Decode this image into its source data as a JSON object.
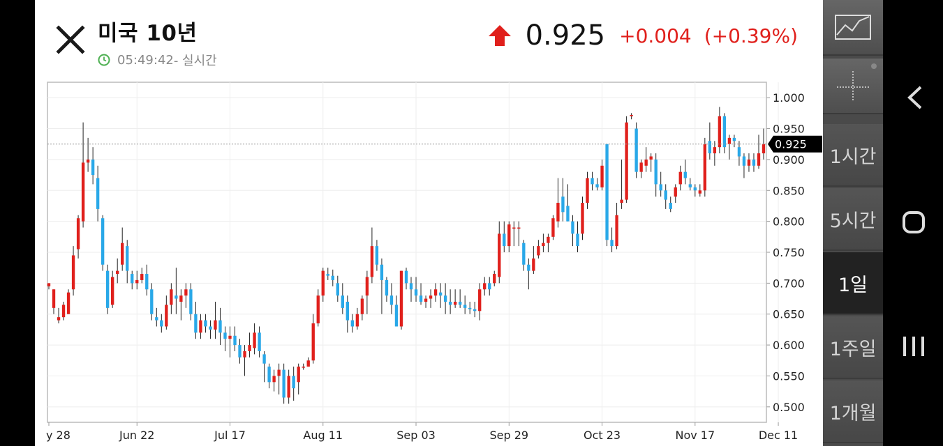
{
  "header": {
    "title": "미국 10년",
    "time": "05:49:42",
    "realtime_label": " - 실시간",
    "price": "0.925",
    "change": "+0.004",
    "change_pct": "(+0.39%)"
  },
  "colors": {
    "up": "#e0201c",
    "down": "#29a8e8",
    "accent_green": "#4caf50",
    "panel": "#4a4a4a"
  },
  "toolbar": {
    "tools": [
      "chart-type-icon",
      "crosshair-icon"
    ]
  },
  "periods": [
    {
      "label": "1시간",
      "active": false
    },
    {
      "label": "5시간",
      "active": false
    },
    {
      "label": "1일",
      "active": true
    },
    {
      "label": "1주일",
      "active": false
    },
    {
      "label": "1개월",
      "active": false
    }
  ],
  "nav": [
    "back-icon",
    "home-icon",
    "recents-icon"
  ],
  "chart_data": {
    "type": "candlestick",
    "ylim": [
      0.475,
      1.025
    ],
    "y_ticks": [
      "1.000",
      "0.950",
      "0.900",
      "0.850",
      "0.800",
      "0.750",
      "0.700",
      "0.650",
      "0.600",
      "0.550",
      "0.500"
    ],
    "x_labels": [
      "y 28",
      "Jun 22",
      "Jul 17",
      "Aug 11",
      "Sep 03",
      "Sep 29",
      "Oct 23",
      "Nov 17",
      "Dec 11"
    ],
    "current_value": 0.925,
    "current_label": "0.925",
    "candles": [
      [
        0.695,
        0.7,
        0.69,
        0.7
      ],
      [
        0.66,
        0.69,
        0.65,
        0.69
      ],
      [
        0.64,
        0.66,
        0.635,
        0.645
      ],
      [
        0.645,
        0.67,
        0.64,
        0.665
      ],
      [
        0.65,
        0.69,
        0.65,
        0.685
      ],
      [
        0.69,
        0.76,
        0.68,
        0.745
      ],
      [
        0.755,
        0.81,
        0.74,
        0.805
      ],
      [
        0.8,
        0.96,
        0.79,
        0.895
      ],
      [
        0.895,
        0.935,
        0.88,
        0.9
      ],
      [
        0.9,
        0.92,
        0.86,
        0.875
      ],
      [
        0.87,
        0.89,
        0.8,
        0.82
      ],
      [
        0.805,
        0.81,
        0.72,
        0.73
      ],
      [
        0.72,
        0.73,
        0.65,
        0.66
      ],
      [
        0.665,
        0.72,
        0.66,
        0.71
      ],
      [
        0.715,
        0.74,
        0.7,
        0.72
      ],
      [
        0.73,
        0.79,
        0.72,
        0.765
      ],
      [
        0.76,
        0.77,
        0.7,
        0.72
      ],
      [
        0.715,
        0.72,
        0.69,
        0.7
      ],
      [
        0.7,
        0.72,
        0.69,
        0.705
      ],
      [
        0.705,
        0.725,
        0.7,
        0.715
      ],
      [
        0.715,
        0.73,
        0.68,
        0.69
      ],
      [
        0.69,
        0.7,
        0.64,
        0.65
      ],
      [
        0.645,
        0.66,
        0.63,
        0.64
      ],
      [
        0.64,
        0.65,
        0.62,
        0.63
      ],
      [
        0.63,
        0.68,
        0.625,
        0.665
      ],
      [
        0.665,
        0.7,
        0.65,
        0.69
      ],
      [
        0.68,
        0.725,
        0.65,
        0.675
      ],
      [
        0.67,
        0.69,
        0.64,
        0.68
      ],
      [
        0.68,
        0.7,
        0.66,
        0.69
      ],
      [
        0.69,
        0.7,
        0.64,
        0.65
      ],
      [
        0.65,
        0.67,
        0.61,
        0.62
      ],
      [
        0.62,
        0.65,
        0.61,
        0.64
      ],
      [
        0.64,
        0.65,
        0.62,
        0.63
      ],
      [
        0.63,
        0.64,
        0.61,
        0.625
      ],
      [
        0.625,
        0.67,
        0.61,
        0.64
      ],
      [
        0.64,
        0.66,
        0.6,
        0.62
      ],
      [
        0.62,
        0.63,
        0.59,
        0.61
      ],
      [
        0.61,
        0.63,
        0.58,
        0.615
      ],
      [
        0.615,
        0.63,
        0.59,
        0.6
      ],
      [
        0.6,
        0.61,
        0.57,
        0.58
      ],
      [
        0.58,
        0.6,
        0.55,
        0.59
      ],
      [
        0.59,
        0.62,
        0.58,
        0.6
      ],
      [
        0.595,
        0.635,
        0.585,
        0.62
      ],
      [
        0.62,
        0.63,
        0.58,
        0.59
      ],
      [
        0.585,
        0.59,
        0.54,
        0.57
      ],
      [
        0.565,
        0.57,
        0.53,
        0.54
      ],
      [
        0.54,
        0.56,
        0.525,
        0.55
      ],
      [
        0.55,
        0.57,
        0.52,
        0.56
      ],
      [
        0.56,
        0.57,
        0.505,
        0.515
      ],
      [
        0.515,
        0.56,
        0.505,
        0.55
      ],
      [
        0.55,
        0.565,
        0.51,
        0.53
      ],
      [
        0.54,
        0.57,
        0.52,
        0.565
      ],
      [
        0.565,
        0.57,
        0.56,
        0.565
      ],
      [
        0.565,
        0.58,
        0.565,
        0.575
      ],
      [
        0.575,
        0.65,
        0.57,
        0.635
      ],
      [
        0.635,
        0.69,
        0.63,
        0.68
      ],
      [
        0.68,
        0.725,
        0.67,
        0.72
      ],
      [
        0.715,
        0.725,
        0.705,
        0.712
      ],
      [
        0.712,
        0.722,
        0.695,
        0.705
      ],
      [
        0.7,
        0.712,
        0.67,
        0.68
      ],
      [
        0.68,
        0.7,
        0.65,
        0.66
      ],
      [
        0.67,
        0.68,
        0.62,
        0.64
      ],
      [
        0.64,
        0.65,
        0.62,
        0.63
      ],
      [
        0.63,
        0.66,
        0.625,
        0.65
      ],
      [
        0.65,
        0.68,
        0.64,
        0.675
      ],
      [
        0.68,
        0.72,
        0.65,
        0.71
      ],
      [
        0.71,
        0.79,
        0.7,
        0.76
      ],
      [
        0.76,
        0.77,
        0.72,
        0.73
      ],
      [
        0.73,
        0.74,
        0.65,
        0.705
      ],
      [
        0.705,
        0.71,
        0.67,
        0.68
      ],
      [
        0.68,
        0.7,
        0.65,
        0.665
      ],
      [
        0.665,
        0.68,
        0.63,
        0.63
      ],
      [
        0.63,
        0.72,
        0.625,
        0.72
      ],
      [
        0.72,
        0.725,
        0.69,
        0.7
      ],
      [
        0.7,
        0.71,
        0.67,
        0.69
      ],
      [
        0.69,
        0.71,
        0.67,
        0.68
      ],
      [
        0.68,
        0.7,
        0.665,
        0.67
      ],
      [
        0.67,
        0.68,
        0.66,
        0.675
      ],
      [
        0.675,
        0.69,
        0.66,
        0.68
      ],
      [
        0.68,
        0.7,
        0.67,
        0.69
      ],
      [
        0.685,
        0.7,
        0.66,
        0.68
      ],
      [
        0.68,
        0.7,
        0.65,
        0.67
      ],
      [
        0.67,
        0.69,
        0.65,
        0.665
      ],
      [
        0.665,
        0.69,
        0.66,
        0.67
      ],
      [
        0.67,
        0.69,
        0.66,
        0.665
      ],
      [
        0.665,
        0.68,
        0.65,
        0.66
      ],
      [
        0.66,
        0.67,
        0.65,
        0.658
      ],
      [
        0.658,
        0.67,
        0.645,
        0.655
      ],
      [
        0.655,
        0.7,
        0.64,
        0.69
      ],
      [
        0.69,
        0.71,
        0.68,
        0.7
      ],
      [
        0.7,
        0.71,
        0.68,
        0.69
      ],
      [
        0.7,
        0.72,
        0.695,
        0.715
      ],
      [
        0.71,
        0.8,
        0.7,
        0.78
      ],
      [
        0.78,
        0.8,
        0.75,
        0.76
      ],
      [
        0.76,
        0.8,
        0.75,
        0.795
      ],
      [
        0.79,
        0.8,
        0.76,
        0.79
      ],
      [
        0.79,
        0.8,
        0.76,
        0.79
      ],
      [
        0.765,
        0.77,
        0.72,
        0.73
      ],
      [
        0.73,
        0.74,
        0.69,
        0.72
      ],
      [
        0.72,
        0.76,
        0.715,
        0.74
      ],
      [
        0.745,
        0.77,
        0.74,
        0.76
      ],
      [
        0.76,
        0.78,
        0.75,
        0.765
      ],
      [
        0.765,
        0.78,
        0.75,
        0.775
      ],
      [
        0.775,
        0.81,
        0.77,
        0.805
      ],
      [
        0.8,
        0.87,
        0.79,
        0.83
      ],
      [
        0.84,
        0.87,
        0.8,
        0.815
      ],
      [
        0.825,
        0.86,
        0.8,
        0.8
      ],
      [
        0.8,
        0.81,
        0.76,
        0.78
      ],
      [
        0.78,
        0.8,
        0.75,
        0.76
      ],
      [
        0.78,
        0.84,
        0.77,
        0.83
      ],
      [
        0.83,
        0.88,
        0.82,
        0.87
      ],
      [
        0.87,
        0.88,
        0.85,
        0.86
      ],
      [
        0.86,
        0.87,
        0.85,
        0.855
      ],
      [
        0.855,
        0.9,
        0.85,
        0.89
      ],
      [
        0.925,
        0.925,
        0.76,
        0.77
      ],
      [
        0.77,
        0.79,
        0.75,
        0.76
      ],
      [
        0.76,
        0.83,
        0.755,
        0.81
      ],
      [
        0.83,
        0.9,
        0.82,
        0.835
      ],
      [
        0.835,
        0.97,
        0.83,
        0.96
      ],
      [
        0.97,
        0.975,
        0.965,
        0.972
      ],
      [
        0.95,
        0.96,
        0.87,
        0.88
      ],
      [
        0.88,
        0.9,
        0.87,
        0.895
      ],
      [
        0.89,
        0.92,
        0.88,
        0.9
      ],
      [
        0.9,
        0.91,
        0.88,
        0.905
      ],
      [
        0.9,
        0.91,
        0.84,
        0.86
      ],
      [
        0.86,
        0.88,
        0.84,
        0.85
      ],
      [
        0.85,
        0.86,
        0.82,
        0.835
      ],
      [
        0.83,
        0.84,
        0.815,
        0.82
      ],
      [
        0.84,
        0.86,
        0.83,
        0.855
      ],
      [
        0.86,
        0.89,
        0.85,
        0.88
      ],
      [
        0.88,
        0.9,
        0.86,
        0.87
      ],
      [
        0.86,
        0.87,
        0.85,
        0.855
      ],
      [
        0.855,
        0.86,
        0.84,
        0.85
      ],
      [
        0.845,
        0.86,
        0.84,
        0.85
      ],
      [
        0.85,
        0.935,
        0.84,
        0.925
      ],
      [
        0.93,
        0.96,
        0.9,
        0.91
      ],
      [
        0.91,
        0.93,
        0.89,
        0.92
      ],
      [
        0.92,
        0.985,
        0.91,
        0.97
      ],
      [
        0.97,
        0.975,
        0.91,
        0.92
      ],
      [
        0.925,
        0.94,
        0.9,
        0.935
      ],
      [
        0.935,
        0.94,
        0.92,
        0.93
      ],
      [
        0.92,
        0.93,
        0.89,
        0.905
      ],
      [
        0.905,
        0.91,
        0.87,
        0.89
      ],
      [
        0.89,
        0.91,
        0.88,
        0.9
      ],
      [
        0.9,
        0.91,
        0.88,
        0.89
      ],
      [
        0.89,
        0.94,
        0.885,
        0.91
      ],
      [
        0.91,
        0.95,
        0.9,
        0.925
      ]
    ]
  }
}
